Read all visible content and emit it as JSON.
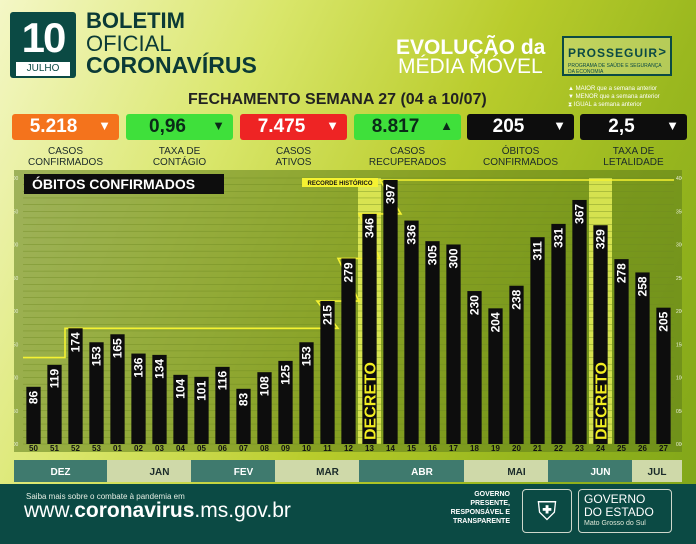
{
  "header": {
    "day": "10",
    "month": "JULHO",
    "title_line1": "BOLETIM",
    "title_line2": "OFICIAL",
    "title_line3": "CORONAVÍRUS",
    "evolucao_line1": "EVOLUÇÃO da",
    "evolucao_line2": "MÉDIA MÓVEL",
    "prosseguir": "PROSSEGUIR",
    "prosseguir_sub": "PROGRAMA DE SAÚDE E SEGURANÇA DA ECONOMIA",
    "fechamento": "FECHAMENTO SEMANA 27 (04 a 10/07)"
  },
  "legend": [
    {
      "symbol": "▲",
      "text": "MAIOR que a semana anterior"
    },
    {
      "symbol": "▼",
      "text": "MENOR que a semana anterior"
    },
    {
      "symbol": "⧗",
      "text": "IGUAL a semana anterior"
    }
  ],
  "stats": [
    {
      "value": "5.218",
      "label": "CASOS CONFIRMADOS",
      "trend": "down",
      "color": "#f4731c",
      "text_color": "#ffffff"
    },
    {
      "value": "0,96",
      "label": "TAXA DE CONTÁGIO",
      "trend": "down",
      "color": "#3fe03b",
      "text_color": "#0a2a18"
    },
    {
      "value": "7.475",
      "label": "CASOS ATIVOS",
      "trend": "down",
      "color": "#ee2424",
      "text_color": "#ffffff"
    },
    {
      "value": "8.817",
      "label": "CASOS RECUPERADOS",
      "trend": "up",
      "color": "#3fe03b",
      "text_color": "#0a2a18"
    },
    {
      "value": "205",
      "label": "ÓBITOS CONFIRMADOS",
      "trend": "down",
      "color": "#0d0d0d",
      "text_color": "#ffffff"
    },
    {
      "value": "2,5",
      "label": "TAXA DE LETALIDADE",
      "trend": "down",
      "color": "#0d0d0d",
      "text_color": "#ffffff"
    }
  ],
  "trend_symbols": {
    "up": "▲",
    "down": "▼",
    "equal": "⧗"
  },
  "chart_data": {
    "type": "bar",
    "title": "ÓBITOS CONFIRMADOS",
    "record_label": "RECORDE HISTÓRICO",
    "categories": [
      "50",
      "51",
      "52",
      "53",
      "01",
      "02",
      "03",
      "04",
      "05",
      "06",
      "07",
      "08",
      "09",
      "10",
      "11",
      "12",
      "13",
      "14",
      "15",
      "16",
      "17",
      "18",
      "19",
      "20",
      "21",
      "22",
      "23",
      "24",
      "25",
      "26",
      "27"
    ],
    "values": [
      86,
      119,
      174,
      153,
      165,
      136,
      134,
      104,
      101,
      116,
      83,
      108,
      125,
      153,
      215,
      279,
      346,
      397,
      336,
      305,
      300,
      230,
      204,
      238,
      311,
      331,
      367,
      329,
      278,
      258,
      205
    ],
    "ylim": [
      0,
      400
    ],
    "yticks": [
      "000",
      "050",
      "100",
      "150",
      "200",
      "250",
      "300",
      "350",
      "400"
    ],
    "grid": true,
    "months": [
      {
        "label": "DEZ",
        "start": "50",
        "end": "53"
      },
      {
        "label": "JAN",
        "start": "01",
        "end": "05"
      },
      {
        "label": "FEV",
        "start": "05",
        "end": "09"
      },
      {
        "label": "MAR",
        "start": "09",
        "end": "13"
      },
      {
        "label": "ABR",
        "start": "13",
        "end": "18"
      },
      {
        "label": "MAI",
        "start": "18",
        "end": "22"
      },
      {
        "label": "JUN",
        "start": "22",
        "end": "26"
      },
      {
        "label": "JUL",
        "start": "26",
        "end": "27"
      }
    ],
    "decree_label": "DECRETO",
    "decree_weeks": [
      "13",
      "24"
    ],
    "record_steps": [
      {
        "from": "50",
        "to": "51",
        "value": 130
      },
      {
        "from": "52",
        "to": "11",
        "value": 174
      },
      {
        "from": "11",
        "to": "12",
        "value": 215
      },
      {
        "from": "12",
        "to": "13",
        "value": 279
      },
      {
        "from": "13",
        "to": "14",
        "value": 346
      },
      {
        "from": "14",
        "to": "27",
        "value": 397
      }
    ],
    "colors": {
      "bar": "#0d0d0d",
      "bar_text": "#ffffff",
      "record_line": "#f5f232",
      "decree_band": "#e5ee58",
      "decree_text": "#f2ee20",
      "grid": "#6f8a22",
      "chart_bg": "#5f7d1c"
    }
  },
  "footer": {
    "saiba": "Saiba mais sobre o combate à pandemia em",
    "url_prefix": "www.",
    "url_bold": "coronavirus",
    "url_suffix": ".ms.gov.br",
    "gov_text_1": "GOVERNO",
    "gov_text_2": "PRESENTE,",
    "gov_text_3": "RESPONSÁVEL E",
    "gov_text_4": "TRANSPARENTE",
    "gov_name_1": "GOVERNO",
    "gov_name_2": "DO ESTADO",
    "gov_state": "Mato Grosso do Sul"
  }
}
